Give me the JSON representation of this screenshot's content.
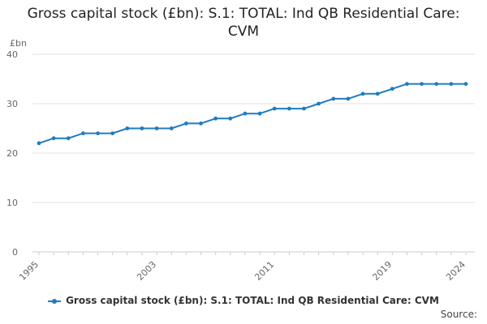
{
  "chart_data": {
    "type": "line",
    "title": "Gross capital stock (£bn): S.1: TOTAL: Ind QB Residential Care: CVM",
    "ylabel": "£bn",
    "xlabel": "",
    "ylim": [
      0,
      40
    ],
    "yticks": [
      0,
      10,
      20,
      30,
      40
    ],
    "xlim": [
      1995,
      2024
    ],
    "xticks": [
      1995,
      2003,
      2011,
      2019,
      2024
    ],
    "grid": true,
    "legend_position": "bottom",
    "series": [
      {
        "name": "Gross capital stock (£bn): S.1: TOTAL: Ind QB Residential Care: CVM",
        "color": "#1f7cc0",
        "x": [
          1995,
          1996,
          1997,
          1998,
          1999,
          2000,
          2001,
          2002,
          2003,
          2004,
          2005,
          2006,
          2007,
          2008,
          2009,
          2010,
          2011,
          2012,
          2013,
          2014,
          2015,
          2016,
          2017,
          2018,
          2019,
          2020,
          2021,
          2022,
          2023,
          2024
        ],
        "values": [
          22,
          23,
          23,
          24,
          24,
          24,
          25,
          25,
          25,
          25,
          26,
          26,
          27,
          27,
          28,
          28,
          29,
          29,
          29,
          30,
          31,
          31,
          32,
          32,
          33,
          34,
          34,
          34,
          34,
          34
        ]
      }
    ]
  },
  "footer": {
    "source_label": "Source:"
  }
}
